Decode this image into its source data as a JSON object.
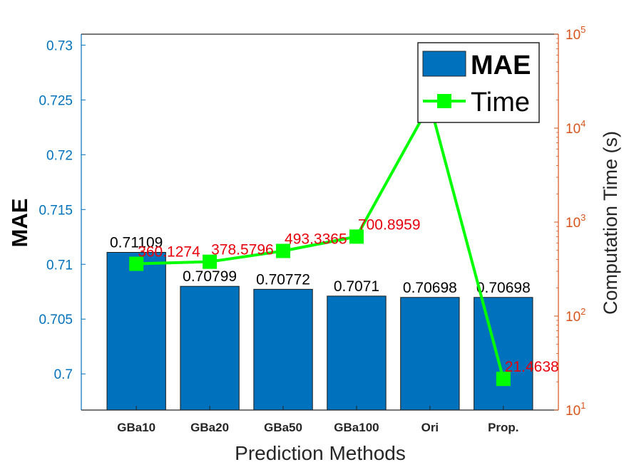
{
  "chart_data": {
    "type": "bar",
    "categories": [
      "GBa10",
      "GBa20",
      "GBa50",
      "GBa100",
      "Ori",
      "Prop."
    ],
    "series": [
      {
        "name": "MAE",
        "axis": "left",
        "type": "bar",
        "color": "#0072BD",
        "values": [
          0.71109,
          0.70799,
          0.70772,
          0.7071,
          0.70698,
          0.70698
        ],
        "labels": [
          "0.71109",
          "0.70799",
          "0.70772",
          "0.7071",
          "0.70698",
          "0.70698"
        ]
      },
      {
        "name": "Time",
        "axis": "right",
        "type": "line",
        "color": "#00FF00",
        "marker": "square",
        "values": [
          360.1274,
          378.5796,
          493.3365,
          700.8959,
          18000,
          21.4638
        ],
        "labels": [
          "360.1274",
          "378.5796",
          "493.3365",
          "700.8959",
          "",
          "21.4638"
        ],
        "label_color": "#e8000b"
      }
    ],
    "xlabel": "Prediction Methods",
    "ylabel": "MAE",
    "ylabel_right": "Computation  Time (s)",
    "ylim": [
      0.6967,
      0.731
    ],
    "ylim_right": [
      10,
      100000
    ],
    "yscale_right": "log",
    "yticks": [
      "0.7",
      "0.705",
      "0.71",
      "0.715",
      "0.72",
      "0.725",
      "0.73"
    ],
    "yticks_right": [
      {
        "base": "10",
        "exp": "1"
      },
      {
        "base": "10",
        "exp": "2"
      },
      {
        "base": "10",
        "exp": "3"
      },
      {
        "base": "10",
        "exp": "4"
      },
      {
        "base": "10",
        "exp": "5"
      }
    ],
    "left_axis_color": "#0072BD",
    "right_axis_color": "#D95319",
    "grid": false,
    "legend": {
      "placement": "top-right",
      "entries": [
        "MAE",
        "Time"
      ]
    }
  }
}
